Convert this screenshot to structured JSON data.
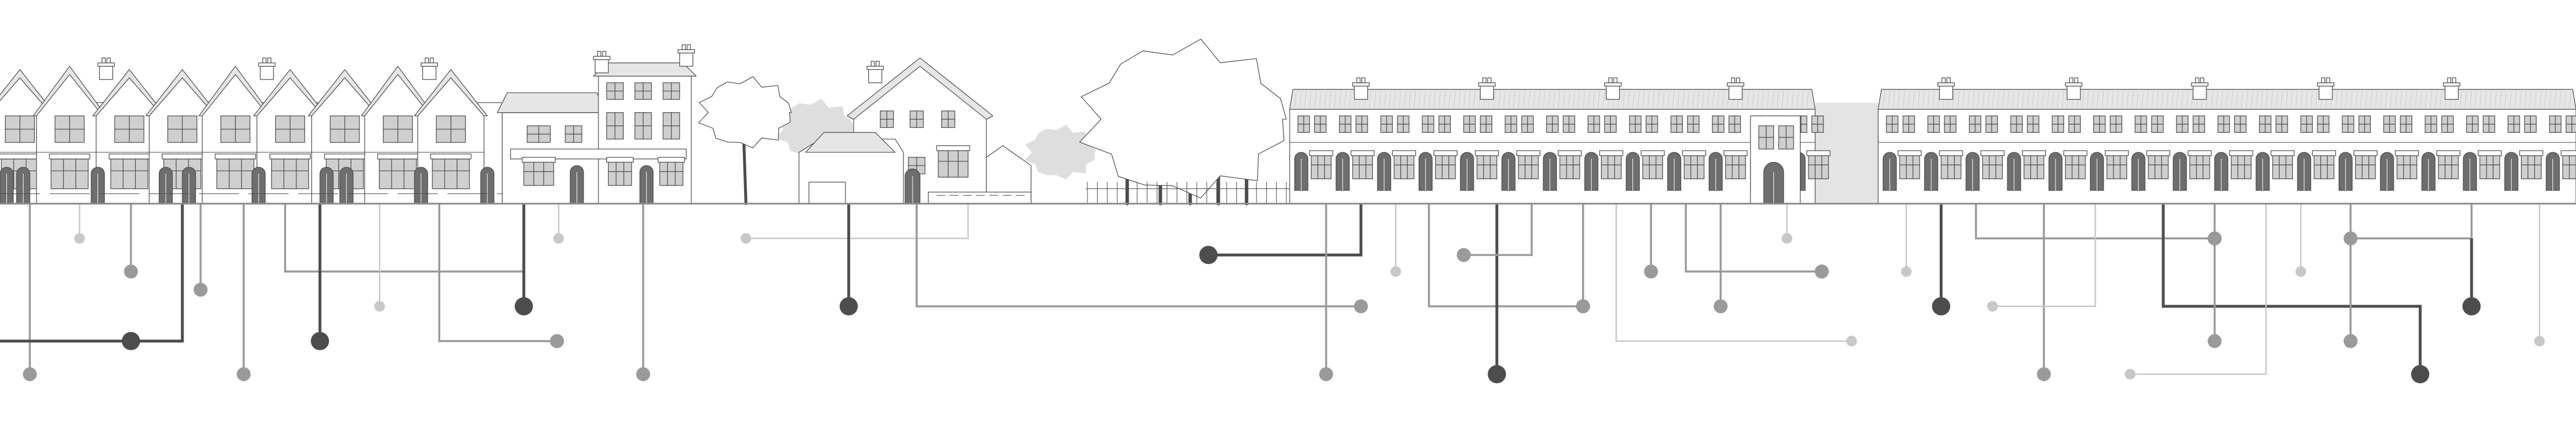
{
  "title": "",
  "colors": {
    "background": "#ffffff",
    "outline": "#4a4a4a",
    "facade": "#ffffff",
    "roof": "#e6e6e6",
    "window_fill": "#cfcfcf",
    "door_fill": "#6e6e6e",
    "tree_crown": "#ffffff",
    "tree_bg": "#dedede",
    "ground_line": "#8c8c8c",
    "line_dark": "#4d4d4d",
    "line_mid": "#9a9a9a",
    "line_light": "#c8c8c8"
  },
  "icons": [
    "house-icon",
    "tree-icon",
    "connector-node-icon"
  ]
}
